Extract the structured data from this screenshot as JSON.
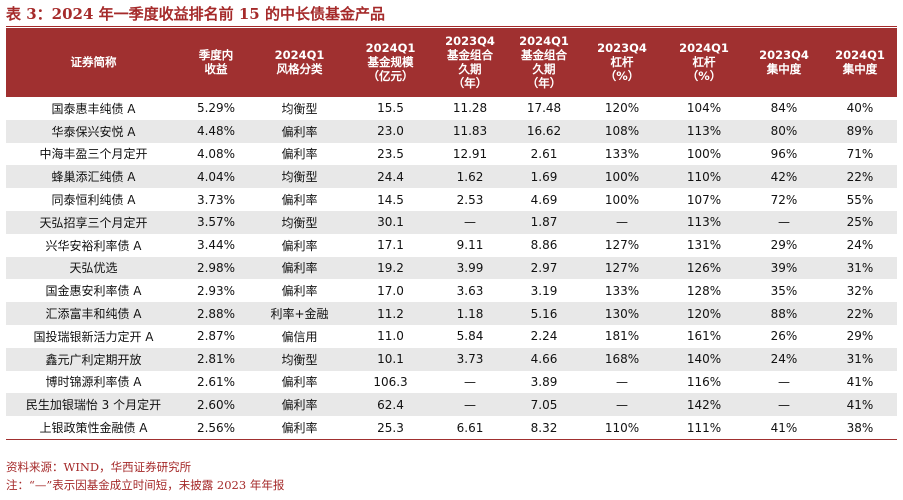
{
  "title": "表 3：2024 年一季度收益排名前 15 的中长债基金产品",
  "headers": [
    [
      "证券简称"
    ],
    [
      "季度内",
      "收益"
    ],
    [
      "2024Q1",
      "风格分类"
    ],
    [
      "2024Q1",
      "基金规模",
      "（亿元）"
    ],
    [
      "2023Q4",
      "基金组合",
      "久期",
      "（年）"
    ],
    [
      "2024Q1",
      "基金组合",
      "久期",
      "（年）"
    ],
    [
      "2023Q4",
      "杠杆",
      "（%）"
    ],
    [
      "2024Q1",
      "杠杆",
      "（%）"
    ],
    [
      "2023Q4",
      "集中度"
    ],
    [
      "2024Q1",
      "集中度"
    ]
  ],
  "rows": [
    [
      "国泰惠丰纯债 A",
      "5.29%",
      "均衡型",
      "15.5",
      "11.28",
      "17.48",
      "120%",
      "104%",
      "84%",
      "40%"
    ],
    [
      "华泰保兴安悦 A",
      "4.48%",
      "偏利率",
      "23.0",
      "11.83",
      "16.62",
      "108%",
      "113%",
      "80%",
      "89%"
    ],
    [
      "中海丰盈三个月定开",
      "4.08%",
      "偏利率",
      "23.5",
      "12.91",
      "2.61",
      "133%",
      "100%",
      "96%",
      "71%"
    ],
    [
      "蜂巢添汇纯债 A",
      "4.04%",
      "均衡型",
      "24.4",
      "1.62",
      "1.69",
      "100%",
      "110%",
      "42%",
      "22%"
    ],
    [
      "同泰恒利纯债 A",
      "3.73%",
      "偏利率",
      "14.5",
      "2.53",
      "4.69",
      "100%",
      "107%",
      "72%",
      "55%"
    ],
    [
      "天弘招享三个月定开",
      "3.57%",
      "均衡型",
      "30.1",
      "—",
      "1.87",
      "—",
      "113%",
      "—",
      "25%"
    ],
    [
      "兴华安裕利率债 A",
      "3.44%",
      "偏利率",
      "17.1",
      "9.11",
      "8.86",
      "127%",
      "131%",
      "29%",
      "24%"
    ],
    [
      "天弘优选",
      "2.98%",
      "偏利率",
      "19.2",
      "3.99",
      "2.97",
      "127%",
      "126%",
      "39%",
      "31%"
    ],
    [
      "国金惠安利率债 A",
      "2.93%",
      "偏利率",
      "17.0",
      "3.63",
      "3.19",
      "133%",
      "128%",
      "35%",
      "32%"
    ],
    [
      "汇添富丰和纯债 A",
      "2.88%",
      "利率+金融",
      "11.2",
      "1.18",
      "5.16",
      "130%",
      "120%",
      "88%",
      "22%"
    ],
    [
      "国投瑞银新活力定开 A",
      "2.87%",
      "偏信用",
      "11.0",
      "5.84",
      "2.24",
      "181%",
      "161%",
      "26%",
      "29%"
    ],
    [
      "鑫元广利定期开放",
      "2.81%",
      "均衡型",
      "10.1",
      "3.73",
      "4.66",
      "168%",
      "140%",
      "24%",
      "31%"
    ],
    [
      "博时锦源利率债 A",
      "2.61%",
      "偏利率",
      "106.3",
      "—",
      "3.89",
      "—",
      "116%",
      "—",
      "41%"
    ],
    [
      "民生加银瑞怡 3 个月定开",
      "2.60%",
      "偏利率",
      "62.4",
      "—",
      "7.05",
      "—",
      "142%",
      "—",
      "41%"
    ],
    [
      "上银政策性金融债 A",
      "2.56%",
      "偏利率",
      "25.3",
      "6.61",
      "8.32",
      "110%",
      "111%",
      "41%",
      "38%"
    ]
  ],
  "source": "资料来源：WIND，华西证券研究所",
  "note": "注：“—”表示因基金成立时间短，未披露 2023 年年报"
}
